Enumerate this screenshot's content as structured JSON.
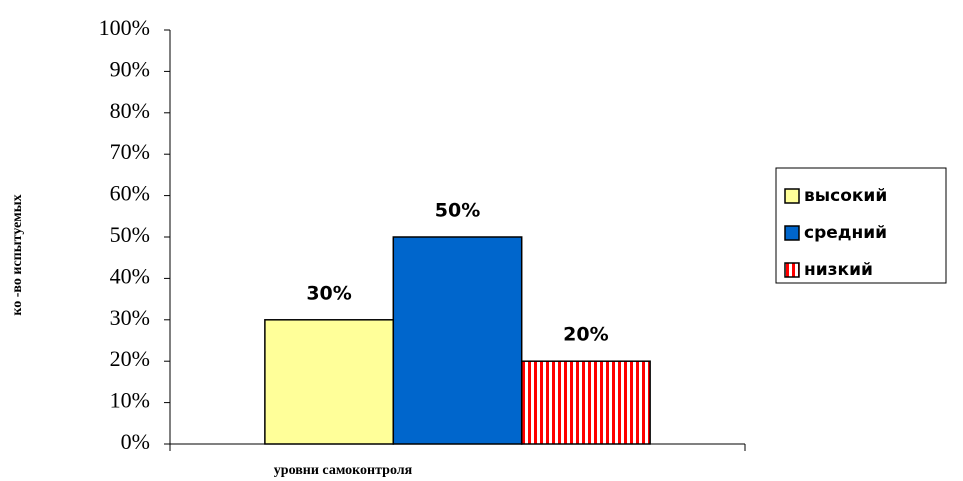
{
  "chart_data": {
    "type": "bar",
    "y_label": "ко -во испытуемых",
    "x_label": "уровни самоконтроля",
    "categories": [
      null
    ],
    "series": [
      {
        "name": "высокий",
        "color": "#ffff99",
        "values": [
          30
        ],
        "value_labels": [
          "30%"
        ]
      },
      {
        "name": "средний",
        "color": "#0066cc",
        "values": [
          50
        ],
        "value_labels": [
          "50%"
        ]
      },
      {
        "name": "низкий",
        "color": "#ff0000",
        "pattern": "vertical-stripes",
        "values": [
          20
        ],
        "value_labels": [
          "20%"
        ]
      }
    ],
    "ylim": [
      0,
      100
    ],
    "yticks": [
      {
        "value": 0,
        "label": "0%"
      },
      {
        "value": 10,
        "label": "10%"
      },
      {
        "value": 20,
        "label": "20%"
      },
      {
        "value": 30,
        "label": "30%"
      },
      {
        "value": 40,
        "label": "40%"
      },
      {
        "value": 50,
        "label": "50%"
      },
      {
        "value": 60,
        "label": "60%"
      },
      {
        "value": 70,
        "label": "70%"
      },
      {
        "value": 80,
        "label": "80%"
      },
      {
        "value": 90,
        "label": "90%"
      },
      {
        "value": 100,
        "label": "100%"
      }
    ],
    "grid": false,
    "legend": "right"
  }
}
